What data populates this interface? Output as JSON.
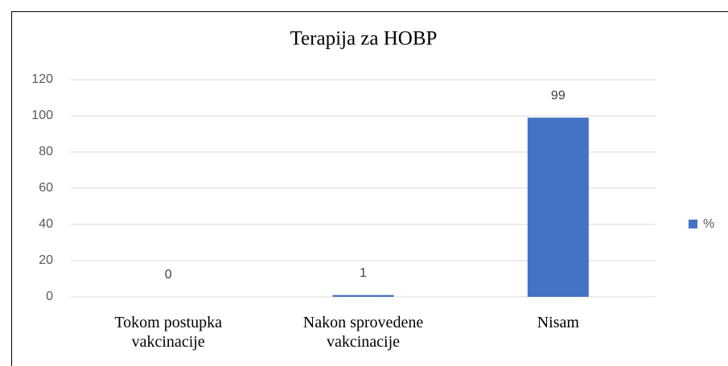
{
  "chart_data": {
    "type": "bar",
    "title": "Terapija za HOBP",
    "categories": [
      "Tokom postupka vakcinacije",
      "Nakon sprovedene vakcinacije",
      "Nisam"
    ],
    "series": [
      {
        "name": "%",
        "color": "#4472c4",
        "values": [
          0,
          1,
          99
        ]
      }
    ],
    "ylim": [
      0,
      120
    ],
    "yticks": [
      0,
      20,
      40,
      60,
      80,
      100,
      120
    ],
    "grid": true,
    "legend": "right"
  }
}
